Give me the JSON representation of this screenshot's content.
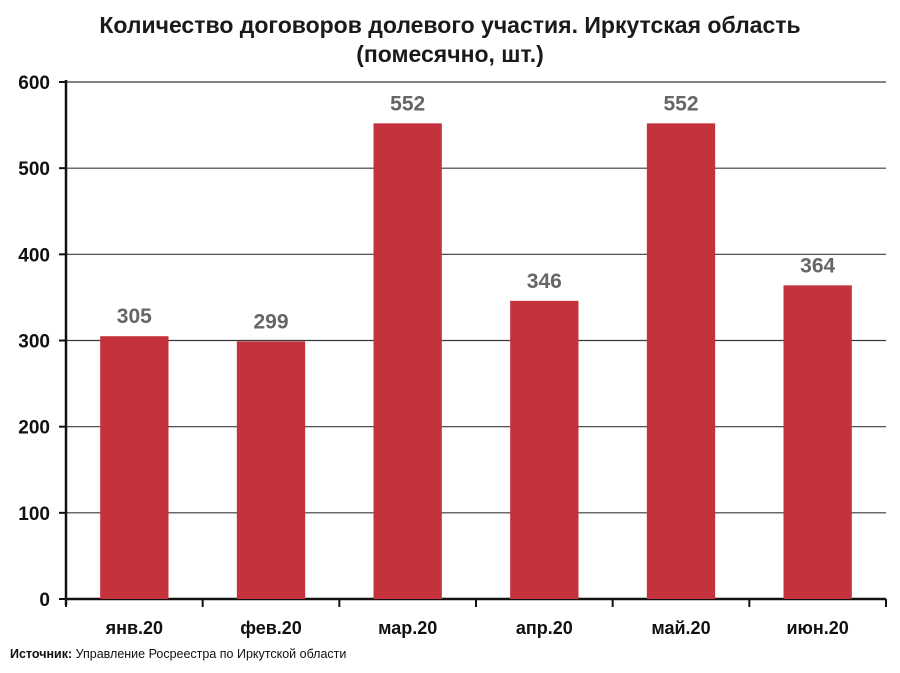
{
  "chart_data": {
    "type": "bar",
    "title": "Количество договоров долевого участия. Иркутская область",
    "subtitle": "(помесячно, шт.)",
    "categories": [
      "янв.20",
      "фев.20",
      "мар.20",
      "апр.20",
      "май.20",
      "июн.20"
    ],
    "values": [
      305,
      299,
      552,
      346,
      552,
      364
    ],
    "data_labels": [
      "305",
      "299",
      "552",
      "346",
      "552",
      "364"
    ],
    "ylim": [
      0,
      600
    ],
    "yticks": [
      0,
      100,
      200,
      300,
      400,
      500,
      600
    ],
    "xlabel": "",
    "ylabel": "",
    "grid": true,
    "bar_color": "#c4333b",
    "label_color": "#666666"
  },
  "source": {
    "label": "Источник:",
    "text": "Управление Росреестра по Иркутской области"
  }
}
